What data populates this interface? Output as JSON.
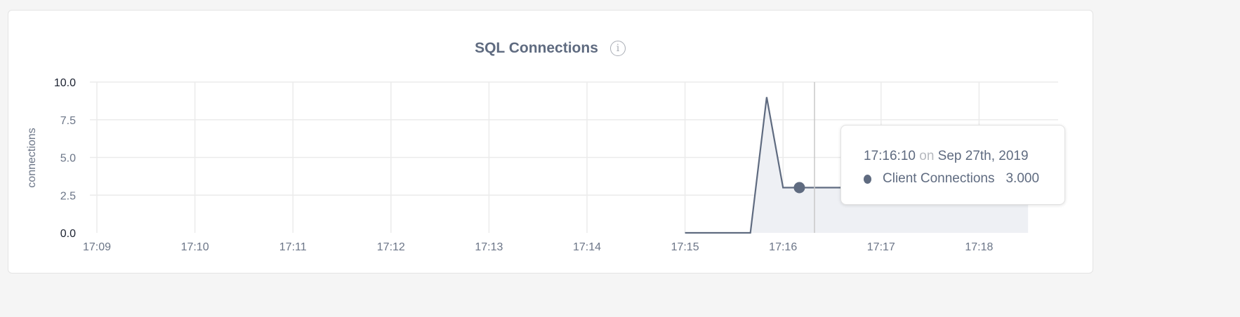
{
  "chart_data": {
    "type": "area",
    "title": "SQL Connections",
    "ylabel": "connections",
    "xlabel": "",
    "ylim": [
      0,
      10
    ],
    "yticks": [
      "0.0",
      "2.5",
      "5.0",
      "7.5",
      "10.0"
    ],
    "xticks": [
      "17:09",
      "17:10",
      "17:11",
      "17:12",
      "17:13",
      "17:14",
      "17:15",
      "17:16",
      "17:17",
      "17:18"
    ],
    "grid": true,
    "series": [
      {
        "name": "Client Connections",
        "color": "#5f6b80",
        "x": [
          "17:15:00",
          "17:15:10",
          "17:15:20",
          "17:15:30",
          "17:15:40",
          "17:15:50",
          "17:16:00",
          "17:16:10",
          "17:16:20",
          "17:16:30",
          "17:16:40",
          "17:16:50",
          "17:17:00",
          "17:17:10",
          "17:17:20",
          "17:17:30",
          "17:17:40",
          "17:17:50",
          "17:18:00",
          "17:18:10",
          "17:18:20",
          "17:18:30"
        ],
        "values": [
          0,
          0,
          0,
          0,
          0,
          9,
          3,
          3,
          3,
          3,
          3,
          3,
          3,
          3,
          3,
          3,
          3,
          3,
          3,
          3,
          3,
          3
        ]
      }
    ],
    "highlight": {
      "x": "17:16:10",
      "value": 3
    }
  },
  "tooltip": {
    "time": "17:16:10",
    "on": "on",
    "date": "Sep 27th, 2019",
    "series": "Client Connections",
    "value": "3.000"
  },
  "info_icon": "info-circle-icon"
}
